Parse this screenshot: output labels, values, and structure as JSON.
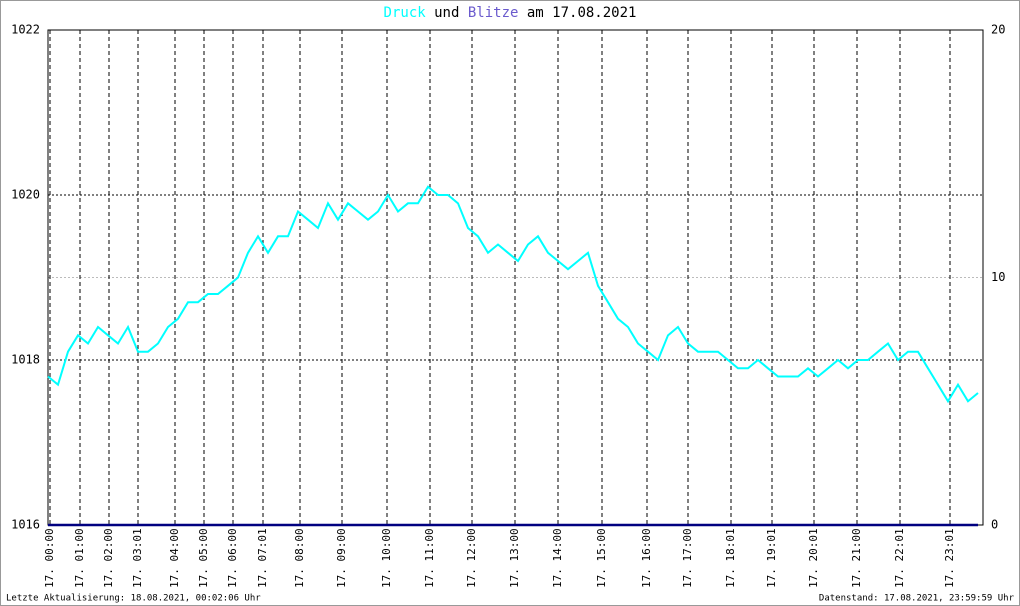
{
  "chart_data": {
    "type": "line",
    "title_parts": [
      "Druck",
      "und",
      "Blitze",
      "am 17.08.2021"
    ],
    "footer_left": "Letzte Aktualisierung: 18.08.2021, 00:02:06 Uhr",
    "footer_right": "Datenstand: 17.08.2021, 23:59:59 Uhr",
    "x": [
      0,
      2,
      4,
      6,
      8,
      10,
      12,
      14,
      16,
      18,
      20,
      22,
      24,
      26,
      28,
      30,
      32,
      34,
      36,
      38,
      40,
      42,
      44,
      46,
      48,
      50,
      52,
      54,
      56,
      58,
      60,
      62,
      64,
      66,
      68,
      70,
      72,
      74,
      76,
      78,
      80,
      82,
      84,
      86,
      88,
      90,
      92,
      94,
      96,
      98,
      100,
      102,
      104,
      106,
      108,
      110,
      112,
      114,
      116,
      118,
      120,
      122,
      124,
      126,
      128,
      130,
      132,
      134,
      136,
      138,
      140,
      142,
      144,
      146,
      148,
      150,
      152,
      154,
      156,
      158,
      160,
      162,
      164,
      166,
      168,
      170,
      172,
      174,
      176,
      178,
      180,
      182,
      184,
      186
    ],
    "xlim": [
      0,
      187
    ],
    "xticks": [
      {
        "value": 0.4,
        "label": "17. 00:00"
      },
      {
        "value": 6.4,
        "label": "17. 01:00"
      },
      {
        "value": 12.2,
        "label": "17. 02:00"
      },
      {
        "value": 18,
        "label": "17. 03:01"
      },
      {
        "value": 25.4,
        "label": "17. 04:00"
      },
      {
        "value": 31.2,
        "label": "17. 05:00"
      },
      {
        "value": 37,
        "label": "17. 06:00"
      },
      {
        "value": 43,
        "label": "17. 07:01"
      },
      {
        "value": 50.4,
        "label": "17. 08:00"
      },
      {
        "value": 58.8,
        "label": "17. 09:00"
      },
      {
        "value": 67.8,
        "label": "17. 10:00"
      },
      {
        "value": 76.4,
        "label": "17. 11:00"
      },
      {
        "value": 84.8,
        "label": "17. 12:00"
      },
      {
        "value": 93.4,
        "label": "17. 13:00"
      },
      {
        "value": 102,
        "label": "17. 14:00"
      },
      {
        "value": 110.8,
        "label": "17. 15:00"
      },
      {
        "value": 119.8,
        "label": "17. 16:00"
      },
      {
        "value": 128,
        "label": "17. 17:00"
      },
      {
        "value": 136.6,
        "label": "17. 18:01"
      },
      {
        "value": 144.8,
        "label": "17. 19:01"
      },
      {
        "value": 153.2,
        "label": "17. 20:01"
      },
      {
        "value": 161.8,
        "label": "17. 21:00"
      },
      {
        "value": 170.4,
        "label": "17. 22:01"
      },
      {
        "value": 180.4,
        "label": "17. 23:01"
      }
    ],
    "ylim": [
      1016,
      1022
    ],
    "yticks": [
      1016,
      1018,
      1020,
      1022
    ],
    "y2lim": [
      0,
      20
    ],
    "y2ticks": [
      0,
      10,
      20
    ],
    "series": [
      {
        "name": "Druck",
        "color": "#00ffff",
        "values": [
          1017.8,
          1017.7,
          1018.1,
          1018.3,
          1018.2,
          1018.4,
          1018.3,
          1018.2,
          1018.4,
          1018.1,
          1018.1,
          1018.2,
          1018.4,
          1018.5,
          1018.7,
          1018.7,
          1018.8,
          1018.8,
          1018.9,
          1019.0,
          1019.3,
          1019.5,
          1019.3,
          1019.5,
          1019.5,
          1019.8,
          1019.7,
          1019.6,
          1019.9,
          1019.7,
          1019.9,
          1019.8,
          1019.7,
          1019.8,
          1020.0,
          1019.8,
          1019.9,
          1019.9,
          1020.1,
          1020.0,
          1020.0,
          1019.9,
          1019.6,
          1019.5,
          1019.3,
          1019.4,
          1019.3,
          1019.2,
          1019.4,
          1019.5,
          1019.3,
          1019.2,
          1019.1,
          1019.2,
          1019.3,
          1018.9,
          1018.7,
          1018.5,
          1018.4,
          1018.2,
          1018.1,
          1018.0,
          1018.3,
          1018.4,
          1018.2,
          1018.1,
          1018.1,
          1018.1,
          1018.0,
          1017.9,
          1017.9,
          1018.0,
          1017.9,
          1017.8,
          1017.8,
          1017.8,
          1017.9,
          1017.8,
          1017.9,
          1018.0,
          1017.9,
          1018.0,
          1018.0,
          1018.1,
          1018.2,
          1018.0,
          1018.1,
          1018.1,
          1017.9,
          1017.7,
          1017.5,
          1017.7,
          1017.5,
          1017.6
        ]
      },
      {
        "name": "Blitze",
        "color": "#6a5acd",
        "axis": "y2",
        "line_color": "#000080",
        "values": [
          0,
          0,
          0,
          0,
          0,
          0,
          0,
          0,
          0,
          0,
          0,
          0,
          0,
          0,
          0,
          0,
          0,
          0,
          0,
          0,
          0,
          0,
          0,
          0,
          0,
          0,
          0,
          0,
          0,
          0,
          0,
          0,
          0,
          0,
          0,
          0,
          0,
          0,
          0,
          0,
          0,
          0,
          0,
          0,
          0,
          0,
          0,
          0,
          0,
          0,
          0,
          0,
          0,
          0,
          0,
          0,
          0,
          0,
          0,
          0,
          0,
          0,
          0,
          0,
          0,
          0,
          0,
          0,
          0,
          0,
          0,
          0,
          0,
          0,
          0,
          0,
          0,
          0,
          0,
          0,
          0,
          0,
          0,
          0,
          0,
          0,
          0,
          0,
          0,
          0,
          0,
          0,
          0,
          0
        ]
      }
    ]
  }
}
